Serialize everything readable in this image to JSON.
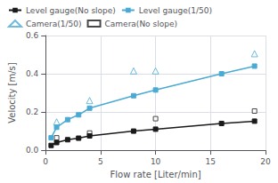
{
  "chart_data": {
    "type": "line",
    "xlabel": "Flow rate [Liter/min]",
    "ylabel": "Velocity [m/s]",
    "xlim": [
      0,
      20
    ],
    "ylim": [
      0.0,
      0.6
    ],
    "xticks": [
      0,
      5,
      10,
      15,
      20
    ],
    "yticks": [
      {
        "value": 0.0,
        "label": "0.0"
      },
      0.2,
      0.4,
      0.6
    ],
    "grid": true,
    "legend": "upper left",
    "series": [
      {
        "name": "Level gauge(No slope)",
        "type": "line",
        "color": "#1a1a1a",
        "marker": "square",
        "line_style": "solid",
        "x": [
          0.5,
          1,
          2,
          3,
          4,
          8,
          10,
          16,
          19
        ],
        "values": [
          0.025,
          0.04,
          0.055,
          0.063,
          0.075,
          0.1,
          0.11,
          0.14,
          0.152
        ]
      },
      {
        "name": "Level gauge(1/50)",
        "type": "line",
        "color": "#4aaad4",
        "marker": "square",
        "line_style": "solid",
        "x": [
          0.5,
          1,
          2,
          3,
          4,
          8,
          10,
          16,
          19
        ],
        "values": [
          0.065,
          0.12,
          0.16,
          0.185,
          0.22,
          0.285,
          0.315,
          0.4,
          0.44
        ]
      },
      {
        "name": "Camera(1/50)",
        "type": "scatter",
        "color": "#4aaad4",
        "marker": "triangle_open",
        "line_style": "none",
        "x": [
          1,
          4,
          8,
          10,
          19
        ],
        "values": [
          0.148,
          0.26,
          0.415,
          0.415,
          0.505
        ]
      },
      {
        "name": "Camera(No slope)",
        "type": "scatter",
        "color": "#1a1a1a",
        "marker": "square_open",
        "line_style": "none",
        "x": [
          1,
          4,
          10,
          19
        ],
        "values": [
          0.065,
          0.09,
          0.165,
          0.205
        ]
      }
    ]
  }
}
